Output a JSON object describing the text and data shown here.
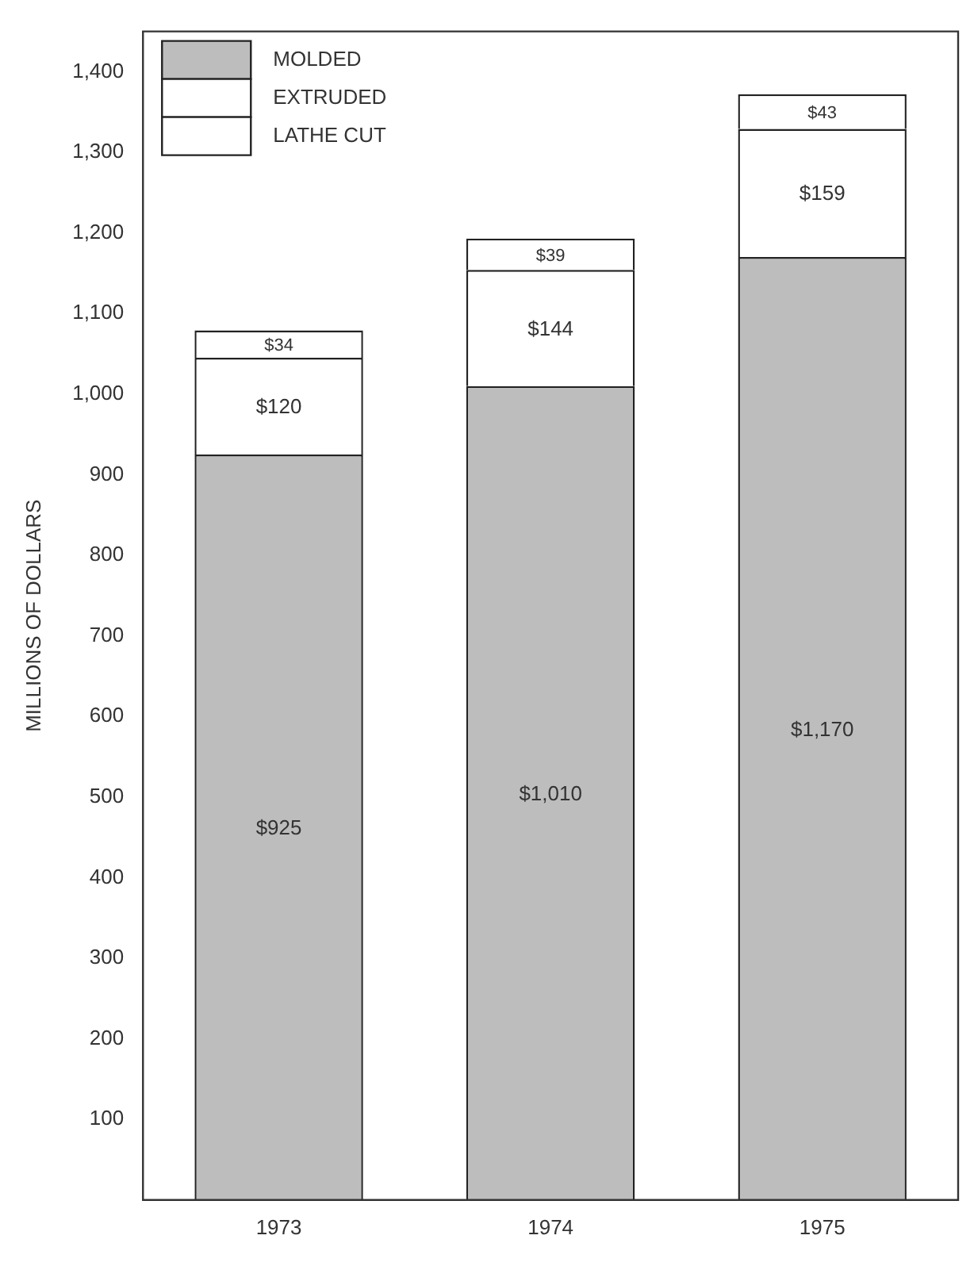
{
  "chart_data": {
    "type": "bar",
    "stacked": true,
    "ylabel": "MILLIONS OF DOLLARS",
    "categories": [
      "1973",
      "1974",
      "1975"
    ],
    "series": [
      {
        "name": "MOLDED",
        "color": "#bdbdbd",
        "values": [
          925,
          1010,
          1170
        ],
        "value_labels": [
          "$925",
          "$1,010",
          "$1,170"
        ]
      },
      {
        "name": "EXTRUDED",
        "color": "#ffffff",
        "values": [
          120,
          144,
          159
        ],
        "value_labels": [
          "$120",
          "$144",
          "$159"
        ]
      },
      {
        "name": "LATHE CUT",
        "color": "#ffffff",
        "values": [
          34,
          39,
          43
        ],
        "value_labels": [
          "$34",
          "$39",
          "$43"
        ]
      }
    ],
    "ylim": [
      0,
      1450
    ],
    "yticks": [
      {
        "value": 100,
        "label": "100"
      },
      {
        "value": 200,
        "label": "200"
      },
      {
        "value": 300,
        "label": "300"
      },
      {
        "value": 400,
        "label": "400"
      },
      {
        "value": 500,
        "label": "500"
      },
      {
        "value": 600,
        "label": "600"
      },
      {
        "value": 700,
        "label": "700"
      },
      {
        "value": 800,
        "label": "800"
      },
      {
        "value": 900,
        "label": "900"
      },
      {
        "value": 1000,
        "label": "1,000"
      },
      {
        "value": 1100,
        "label": "1,100"
      },
      {
        "value": 1200,
        "label": "1,200"
      },
      {
        "value": 1300,
        "label": "1,300"
      },
      {
        "value": 1400,
        "label": "1,400"
      }
    ],
    "grid": false,
    "legend": "top left"
  }
}
